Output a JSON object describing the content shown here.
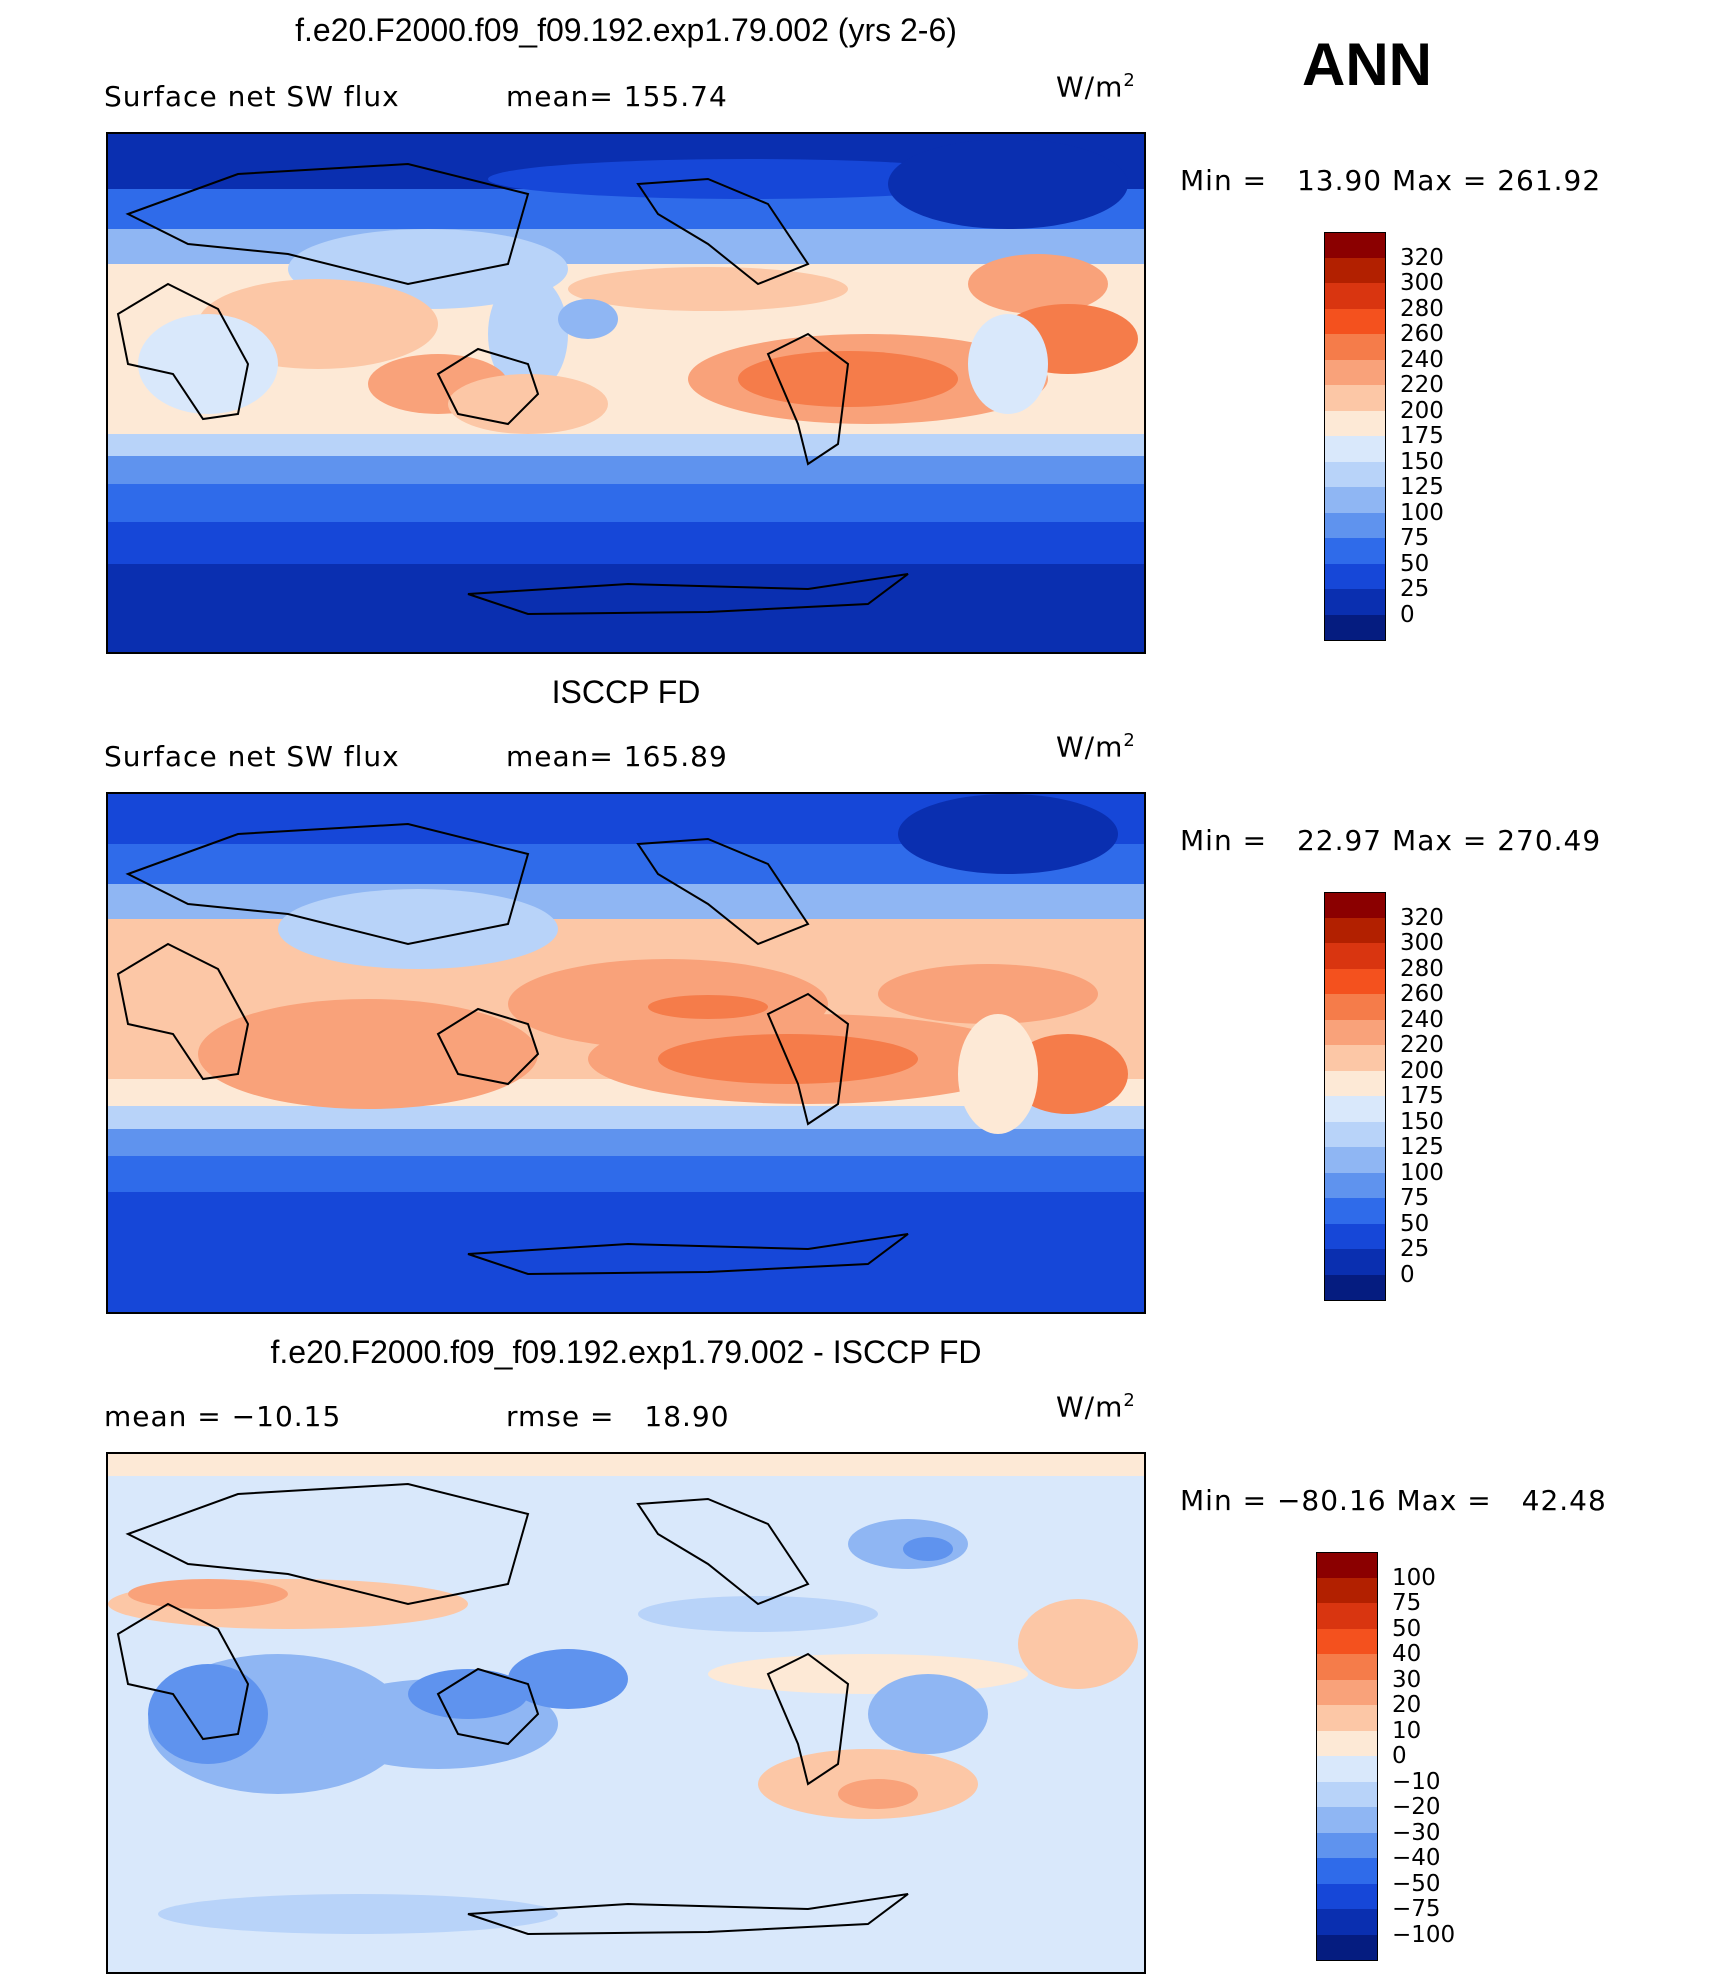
{
  "season": "ANN",
  "units_main": "W/m",
  "units_sup": "2",
  "panels": [
    {
      "title": "f.e20.F2000.f09_f09.192.exp1.79.002 (yrs 2-6)",
      "left_label": "Surface net SW flux",
      "stat_label": "mean=",
      "stat_value": "155.74",
      "min_label": "Min =",
      "min_value": "13.90",
      "max_label": "Max =",
      "max_value": "261.92",
      "colorbar": {
        "levels": [
          "320",
          "300",
          "280",
          "260",
          "240",
          "220",
          "200",
          "175",
          "150",
          "125",
          "100",
          "75",
          "50",
          "25",
          "0"
        ],
        "colors": [
          "#8b0000",
          "#b22000",
          "#d93510",
          "#f4511e",
          "#f57c4a",
          "#f9a27a",
          "#fcc7a6",
          "#fde9d6",
          "#d9e8fb",
          "#b8d3f9",
          "#8fb6f3",
          "#5f93ee",
          "#2f6bea",
          "#1647d8",
          "#0a2fb0",
          "#051c80"
        ]
      }
    },
    {
      "title": "ISCCP FD",
      "left_label": "Surface net SW flux",
      "stat_label": "mean=",
      "stat_value": "165.89",
      "min_label": "Min =",
      "min_value": "22.97",
      "max_label": "Max =",
      "max_value": "270.49",
      "colorbar": {
        "levels": [
          "320",
          "300",
          "280",
          "260",
          "240",
          "220",
          "200",
          "175",
          "150",
          "125",
          "100",
          "75",
          "50",
          "25",
          "0"
        ],
        "colors": [
          "#8b0000",
          "#b22000",
          "#d93510",
          "#f4511e",
          "#f57c4a",
          "#f9a27a",
          "#fcc7a6",
          "#fde9d6",
          "#d9e8fb",
          "#b8d3f9",
          "#8fb6f3",
          "#5f93ee",
          "#2f6bea",
          "#1647d8",
          "#0a2fb0",
          "#051c80"
        ]
      }
    },
    {
      "title": "f.e20.F2000.f09_f09.192.exp1.79.002 - ISCCP FD",
      "left_label": "mean = −10.15",
      "stat_label": "rmse =",
      "stat_value": "18.90",
      "min_label": "Min =",
      "min_value": "−80.16",
      "max_label": "Max =",
      "max_value": "42.48",
      "colorbar": {
        "levels": [
          "100",
          "75",
          "50",
          "40",
          "30",
          "20",
          "10",
          "0",
          "−10",
          "−20",
          "−30",
          "−40",
          "−50",
          "−75",
          "−100"
        ],
        "colors": [
          "#8b0000",
          "#b22000",
          "#d93510",
          "#f4511e",
          "#f57c4a",
          "#f9a27a",
          "#fcc7a6",
          "#fde9d6",
          "#d9e8fb",
          "#b8d3f9",
          "#8fb6f3",
          "#5f93ee",
          "#2f6bea",
          "#1647d8",
          "#0a2fb0",
          "#051c80"
        ]
      }
    }
  ]
}
